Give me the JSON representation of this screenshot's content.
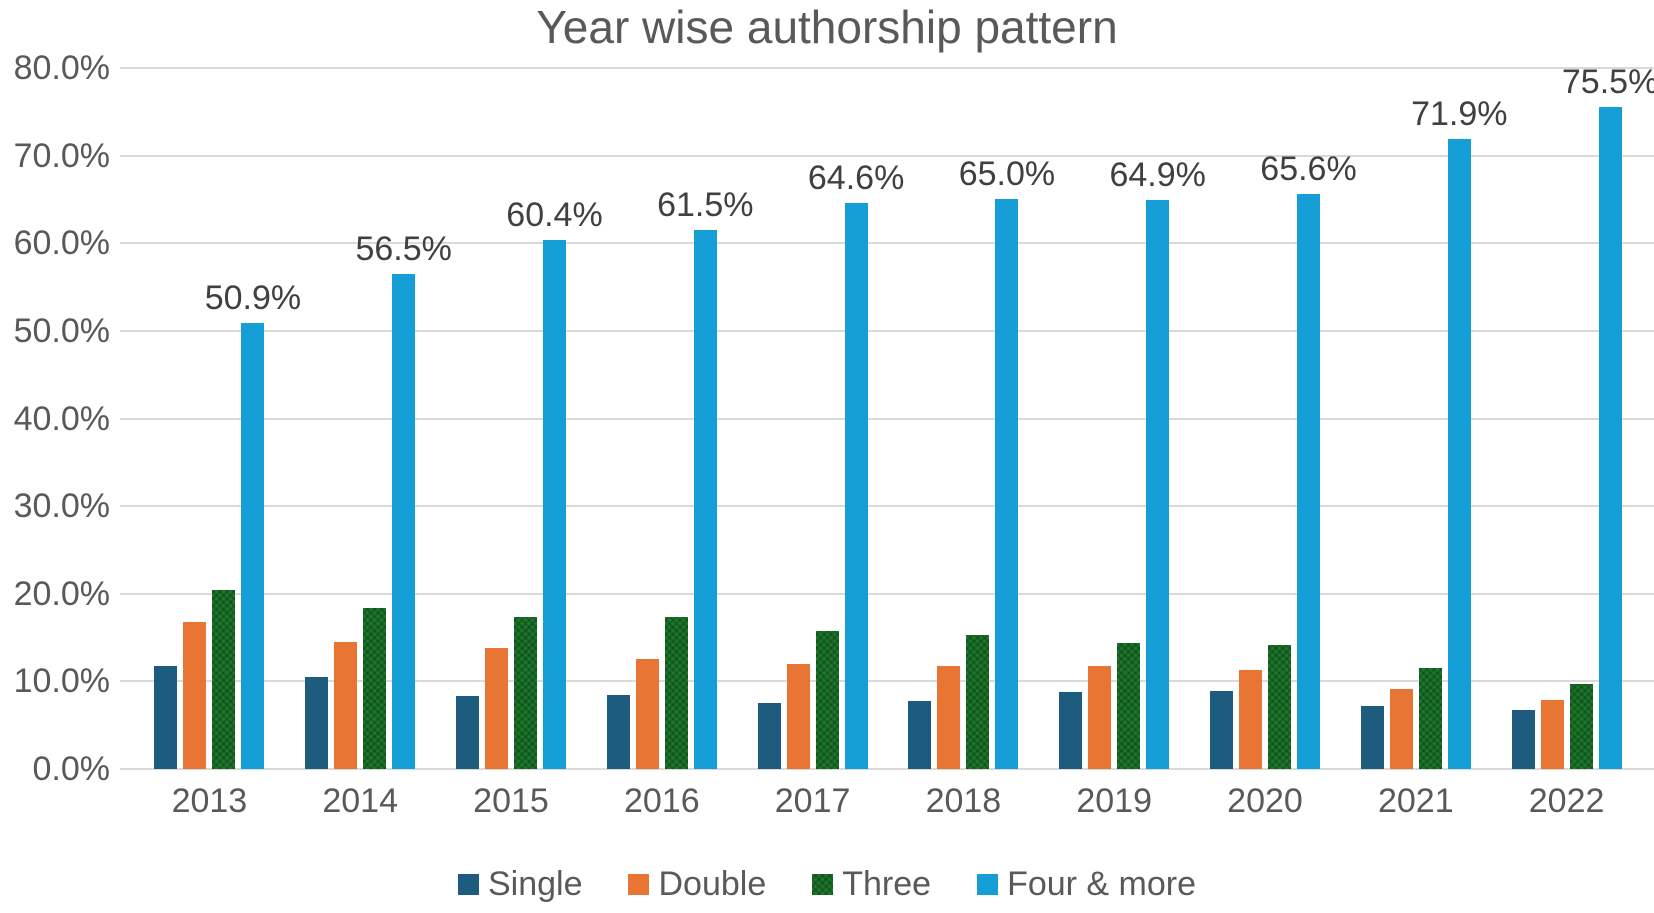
{
  "chart_data": {
    "type": "bar",
    "title": "Year wise authorship pattern",
    "categories": [
      "2013",
      "2014",
      "2015",
      "2016",
      "2017",
      "2018",
      "2019",
      "2020",
      "2021",
      "2022"
    ],
    "series": [
      {
        "name": "Single",
        "color": "#1d5c7f",
        "values": [
          11.8,
          10.5,
          8.3,
          8.4,
          7.5,
          7.8,
          8.8,
          8.9,
          7.2,
          6.7
        ]
      },
      {
        "name": "Double",
        "color": "#e87534",
        "values": [
          16.8,
          14.5,
          13.8,
          12.5,
          12.0,
          11.8,
          11.7,
          11.3,
          9.1,
          7.9
        ]
      },
      {
        "name": "Three",
        "color": "#1e752e",
        "pattern": "crosshatch",
        "values": [
          20.4,
          18.4,
          17.3,
          17.4,
          15.8,
          15.3,
          14.4,
          14.1,
          11.5,
          9.7
        ]
      },
      {
        "name": "Four & more",
        "color": "#159dd6",
        "values": [
          50.9,
          56.5,
          60.4,
          61.5,
          64.6,
          65.0,
          64.9,
          65.6,
          71.9,
          75.5
        ],
        "data_labels": [
          "50.9%",
          "56.5%",
          "60.4%",
          "61.5%",
          "64.6%",
          "65.0%",
          "64.9%",
          "65.6%",
          "71.9%",
          "75.5%"
        ]
      }
    ],
    "ylim": [
      0,
      80
    ],
    "y_ticks": [
      "0.0%",
      "10.0%",
      "20.0%",
      "30.0%",
      "40.0%",
      "50.0%",
      "60.0%",
      "70.0%",
      "80.0%"
    ],
    "grid": true,
    "legend_position": "bottom",
    "xlabel": "",
    "ylabel": ""
  },
  "colors": {
    "axis_text": "#595959",
    "data_label_text": "#404040",
    "gridline": "#dadada",
    "background": "#ffffff"
  }
}
